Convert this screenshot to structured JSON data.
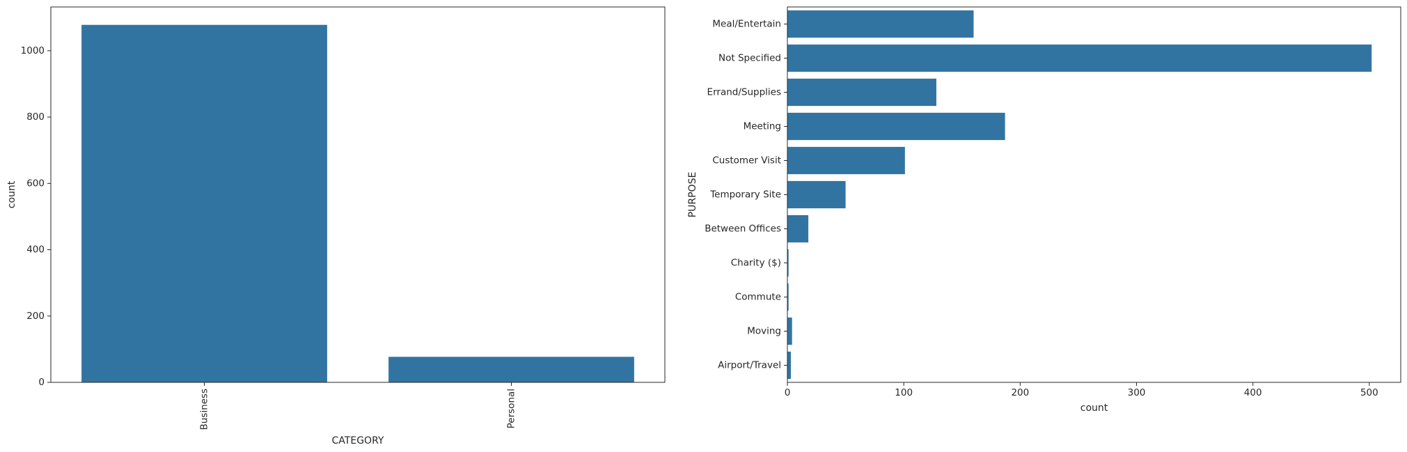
{
  "chart_data": [
    {
      "type": "bar",
      "orientation": "vertical",
      "title": "",
      "xlabel": "CATEGORY",
      "ylabel": "count",
      "categories": [
        "Business",
        "Personal"
      ],
      "values": [
        1078,
        77
      ],
      "ylim": [
        0,
        1132
      ],
      "yticks": [
        0,
        200,
        400,
        600,
        800,
        1000
      ],
      "xtick_rotation": 90,
      "color": "#3274a1",
      "grid": false,
      "legend": "none"
    },
    {
      "type": "bar",
      "orientation": "horizontal",
      "title": "",
      "xlabel": "count",
      "ylabel": "PURPOSE",
      "categories": [
        "Meal/Entertain",
        "Not Specified",
        "Errand/Supplies",
        "Meeting",
        "Customer Visit",
        "Temporary Site",
        "Between Offices",
        "Charity ($)",
        "Commute",
        "Moving",
        "Airport/Travel"
      ],
      "values": [
        160,
        502,
        128,
        187,
        101,
        50,
        18,
        1,
        1,
        4,
        3
      ],
      "xlim": [
        0,
        527
      ],
      "xticks": [
        0,
        100,
        200,
        300,
        400,
        500
      ],
      "color": "#3274a1",
      "grid": false,
      "legend": "none"
    }
  ]
}
